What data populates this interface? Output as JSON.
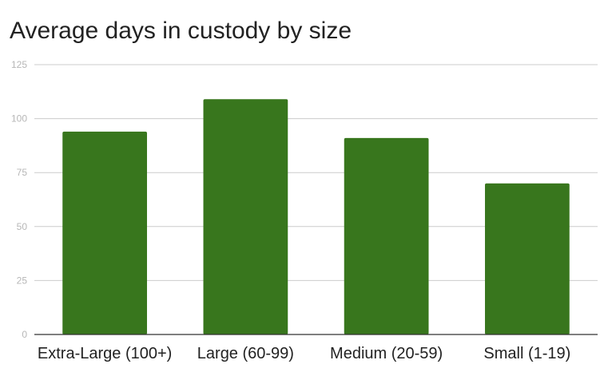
{
  "chart_data": {
    "type": "bar",
    "title": "Average days in custody by size",
    "xlabel": "",
    "ylabel": "",
    "categories": [
      "Extra-Large (100+)",
      "Large (60-99)",
      "Medium (20-59)",
      "Small (1-19)"
    ],
    "values": [
      94,
      109,
      91,
      70
    ],
    "ylim": [
      0,
      125
    ],
    "yticks": [
      0,
      25,
      50,
      75,
      100,
      125
    ],
    "ytick_labels": [
      "0",
      "25",
      "50",
      "75",
      "100",
      "125"
    ],
    "grid": true,
    "legend": "none",
    "bar_color": "#38761d"
  }
}
